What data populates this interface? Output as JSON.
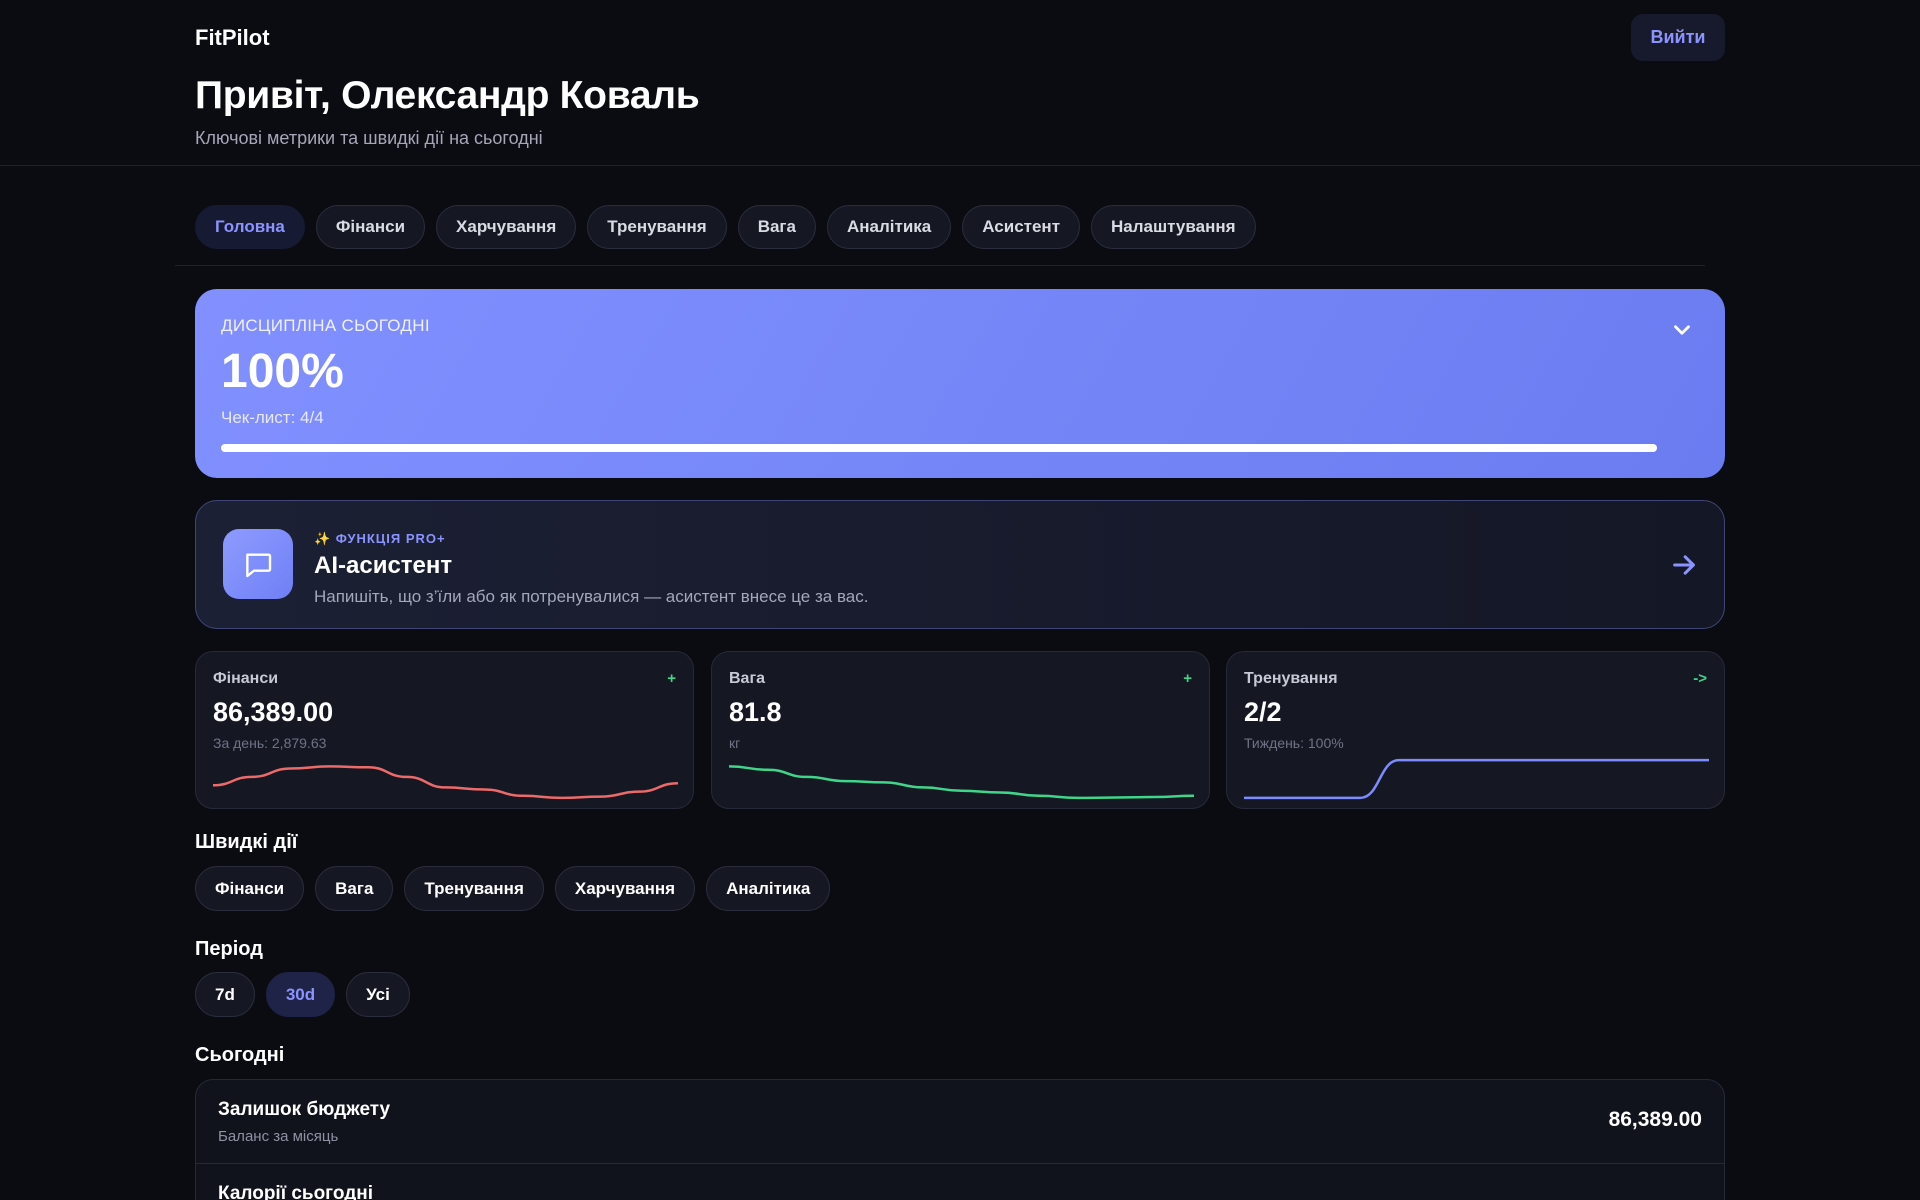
{
  "app": {
    "brand": "FitPilot",
    "logout_label": "Вийти"
  },
  "header": {
    "greeting": "Привіт, Олександр Коваль",
    "subtitle": "Ключові метрики та швидкі дії на сьогодні"
  },
  "tabs": [
    {
      "label": "Головна",
      "active": true
    },
    {
      "label": "Фінанси"
    },
    {
      "label": "Харчування"
    },
    {
      "label": "Тренування"
    },
    {
      "label": "Вага"
    },
    {
      "label": "Аналітика"
    },
    {
      "label": "Асистент"
    },
    {
      "label": "Налаштування"
    }
  ],
  "discipline": {
    "label": "ДИСЦИПЛІНА СЬОГОДНІ",
    "value": "100%",
    "checklist": "Чек-лист: 4/4",
    "progress": 1.0,
    "toggle_icon": "chevron-down-icon"
  },
  "assistant": {
    "badge": "✨ ФУНКЦІЯ PRO+",
    "title": "AI-асистент",
    "description": "Напишіть, що з’їли або як потренувалися — асистент внесе це за вас.",
    "icon": "chat-bubble-icon",
    "arrow_icon": "arrow-right-icon"
  },
  "metrics": [
    {
      "label": "Фінанси",
      "action": "+",
      "value": "86,389.00",
      "sub": "За день: 2,879.63",
      "color": "#ec6a6a",
      "trend": [
        0.35,
        0.55,
        0.75,
        0.8,
        0.78,
        0.55,
        0.3,
        0.25,
        0.1,
        0.05,
        0.08,
        0.2,
        0.4
      ]
    },
    {
      "label": "Вага",
      "action": "+",
      "value": "81.8",
      "sub": "кг",
      "color": "#3fd68a",
      "trend": [
        0.8,
        0.72,
        0.55,
        0.45,
        0.42,
        0.3,
        0.22,
        0.18,
        0.1,
        0.05,
        0.06,
        0.07,
        0.1
      ]
    },
    {
      "label": "Тренування",
      "action": "->",
      "value": "2/2",
      "sub": "Тиждень: 100%",
      "color": "#7c8cff",
      "trend": [
        0.05,
        0.05,
        0.05,
        0.05,
        0.95,
        0.95,
        0.95,
        0.95,
        0.95,
        0.95,
        0.95,
        0.95,
        0.95
      ]
    }
  ],
  "quick_actions": {
    "title": "Швидкі дії",
    "items": [
      "Фінанси",
      "Вага",
      "Тренування",
      "Харчування",
      "Аналітика"
    ]
  },
  "period": {
    "title": "Період",
    "options": [
      {
        "label": "7d"
      },
      {
        "label": "30d",
        "active": true
      },
      {
        "label": "Усі"
      }
    ]
  },
  "today": {
    "title": "Сьогодні",
    "rows": [
      {
        "title": "Залишок бюджету",
        "sub": "Баланс за місяць",
        "value": "86,389.00"
      },
      {
        "title": "Калорії сьогодні",
        "sub": "",
        "value": ""
      }
    ]
  },
  "colors": {
    "accent": "#8b93ff",
    "positive": "#3fd68a",
    "negative": "#ec6a6a"
  }
}
